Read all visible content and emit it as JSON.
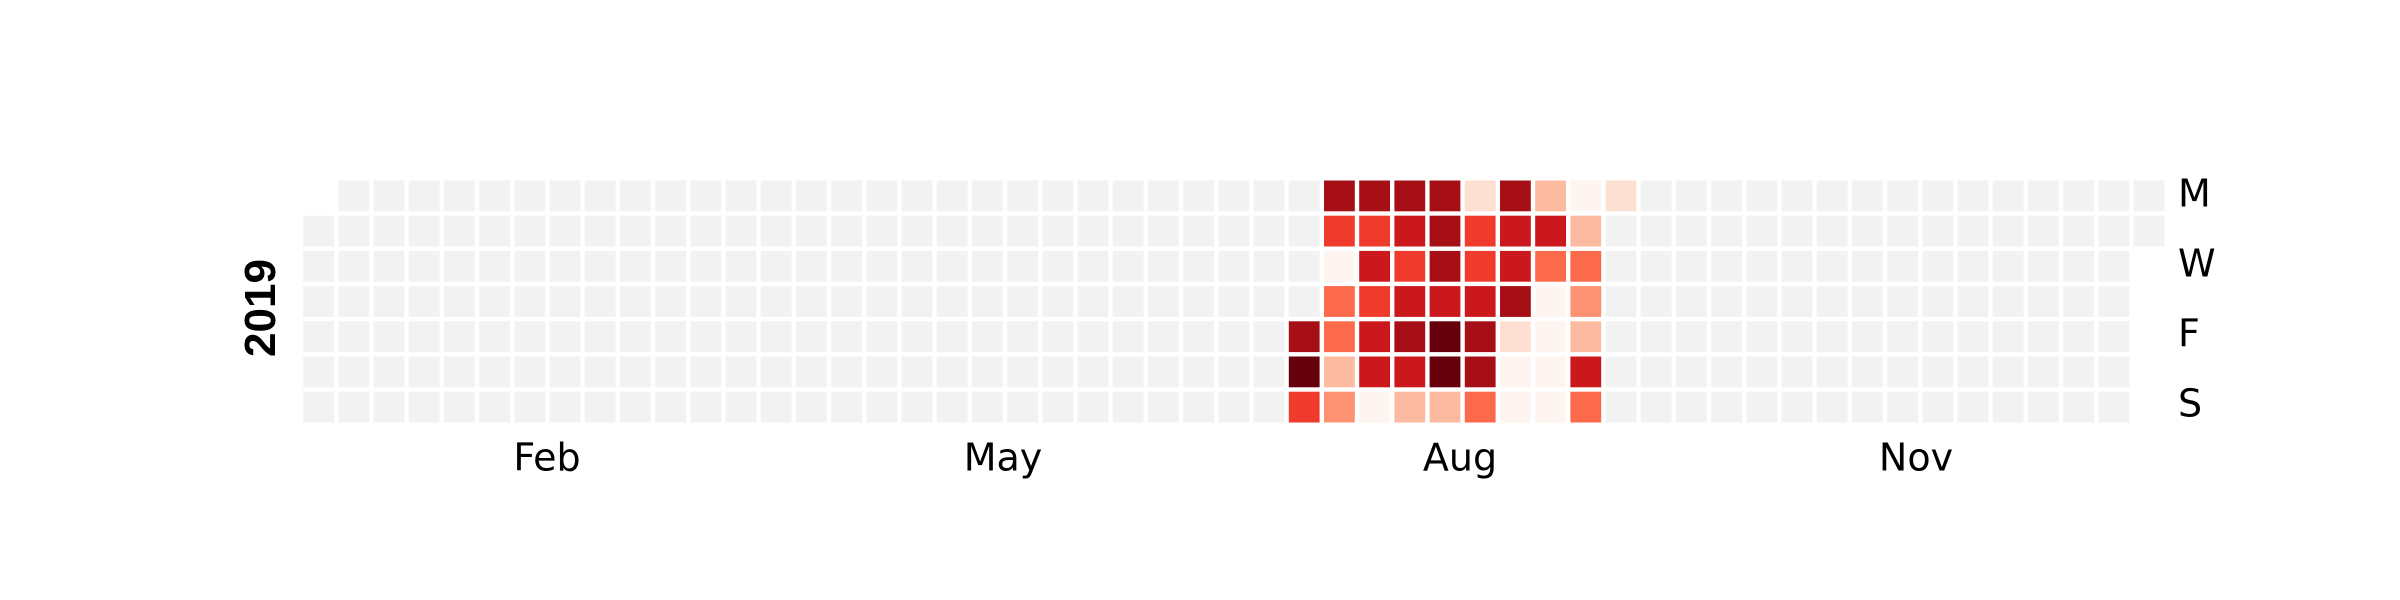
{
  "chart_data": {
    "type": "heatmap",
    "title": "",
    "year_label": "2019",
    "weekday_labels": [
      "M",
      "W",
      "F",
      "S"
    ],
    "month_labels": [
      "Feb",
      "May",
      "Aug",
      "Nov"
    ],
    "empty_color": "#f2f2f2",
    "colors": [
      "#fff5f0",
      "#fee0d2",
      "#fcbba1",
      "#fc9272",
      "#fb6a4a",
      "#ef3b2c",
      "#cb181d",
      "#a50f15",
      "#67000d"
    ],
    "active_weeks": [
      {
        "week_index": 28,
        "values": [
          null,
          null,
          null,
          null,
          7,
          9,
          5
        ]
      },
      {
        "week_index": 29,
        "values": [
          7,
          5,
          0,
          4,
          4,
          2,
          3
        ]
      },
      {
        "week_index": 30,
        "values": [
          7,
          5,
          6,
          5,
          6,
          6,
          0
        ]
      },
      {
        "week_index": 31,
        "values": [
          7,
          6,
          5,
          6,
          7,
          6,
          2
        ]
      },
      {
        "week_index": 32,
        "values": [
          7,
          7,
          7,
          6,
          8,
          8,
          2
        ]
      },
      {
        "week_index": 33,
        "values": [
          1,
          5,
          5,
          6,
          7,
          7,
          4
        ]
      },
      {
        "week_index": 34,
        "values": [
          7,
          6,
          6,
          7,
          1,
          0,
          0
        ]
      },
      {
        "week_index": 35,
        "values": [
          2,
          6,
          4,
          0,
          0,
          0,
          0
        ]
      },
      {
        "week_index": 36,
        "values": [
          0,
          2,
          4,
          3,
          2,
          6,
          4
        ]
      },
      {
        "week_index": 37,
        "values": [
          1,
          null,
          null,
          null,
          null,
          null,
          null
        ]
      }
    ]
  }
}
